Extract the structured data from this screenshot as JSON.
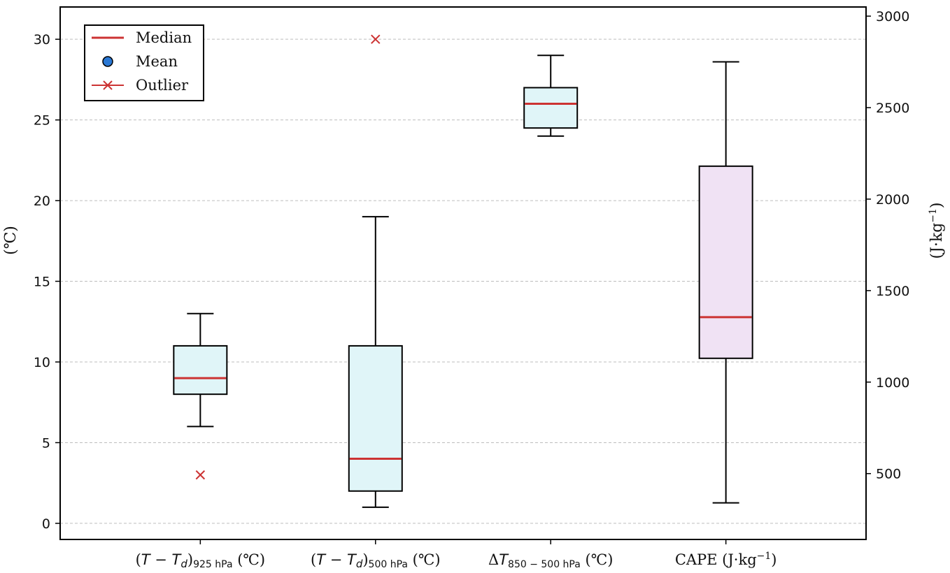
{
  "chart_data": {
    "type": "box",
    "title": "",
    "categories": [
      {
        "parts": [
          {
            "t": "(",
            "style": "normal"
          },
          {
            "t": "T",
            "style": "italic"
          },
          {
            "t": " − ",
            "style": "normal"
          },
          {
            "t": "T",
            "style": "italic"
          },
          {
            "t": "d",
            "style": "italic-sub"
          },
          {
            "t": ")",
            "style": "normal"
          },
          {
            "t": "925 hPa",
            "style": "sub"
          },
          {
            "t": " (℃)",
            "style": "normal"
          }
        ]
      },
      {
        "parts": [
          {
            "t": "(",
            "style": "normal"
          },
          {
            "t": "T",
            "style": "italic"
          },
          {
            "t": " − ",
            "style": "normal"
          },
          {
            "t": "T",
            "style": "italic"
          },
          {
            "t": "d",
            "style": "italic-sub"
          },
          {
            "t": ")",
            "style": "normal"
          },
          {
            "t": "500 hPa",
            "style": "sub"
          },
          {
            "t": " (℃)",
            "style": "normal"
          }
        ]
      },
      {
        "parts": [
          {
            "t": "Δ",
            "style": "normal"
          },
          {
            "t": "T",
            "style": "italic"
          },
          {
            "t": "850 − 500 hPa",
            "style": "sub"
          },
          {
            "t": " (℃)",
            "style": "normal"
          }
        ]
      },
      {
        "parts": [
          {
            "t": "CAPE (J·kg",
            "style": "normal"
          },
          {
            "t": "−1",
            "style": "sup"
          },
          {
            "t": ")",
            "style": "normal"
          }
        ]
      }
    ],
    "boxes": [
      {
        "axis": "left",
        "whisker_low": 6,
        "q1": 8,
        "median": 9,
        "q3": 11,
        "whisker_high": 13,
        "outliers": [
          3
        ],
        "fill": "#e0f5f8"
      },
      {
        "axis": "left",
        "whisker_low": 1,
        "q1": 2,
        "median": 4,
        "q3": 11,
        "whisker_high": 19,
        "outliers": [
          30
        ],
        "fill": "#e0f5f8"
      },
      {
        "axis": "left",
        "whisker_low": 24,
        "q1": 24.5,
        "median": 26,
        "q3": 27,
        "whisker_high": 29,
        "outliers": [],
        "fill": "#e0f5f8"
      },
      {
        "axis": "right",
        "whisker_low": 340,
        "q1": 1130,
        "median": 1355,
        "q3": 2180,
        "whisker_high": 2750,
        "outliers": [],
        "fill": "#f0e2f4"
      }
    ],
    "left_axis": {
      "label": "(℃)",
      "min": -1,
      "max": 32,
      "ticks": [
        0,
        5,
        10,
        15,
        20,
        25,
        30
      ]
    },
    "right_axis": {
      "label_parts": [
        {
          "t": "(J·kg",
          "style": "normal"
        },
        {
          "t": "−1",
          "style": "sup"
        },
        {
          "t": ")",
          "style": "normal"
        }
      ],
      "min": 140,
      "max": 3050,
      "ticks": [
        500,
        1000,
        1500,
        2000,
        2500,
        3000
      ]
    },
    "grid": true,
    "legend": {
      "position": "top-left",
      "entries": [
        {
          "label": "Median",
          "marker": "line"
        },
        {
          "label": "Mean",
          "marker": "circle"
        },
        {
          "label": "Outlier",
          "marker": "cross"
        }
      ]
    },
    "colors": {
      "median": "#cc3333",
      "outlier": "#cc3333",
      "mean": "#2a78d4",
      "box_edge": "#000000"
    }
  }
}
